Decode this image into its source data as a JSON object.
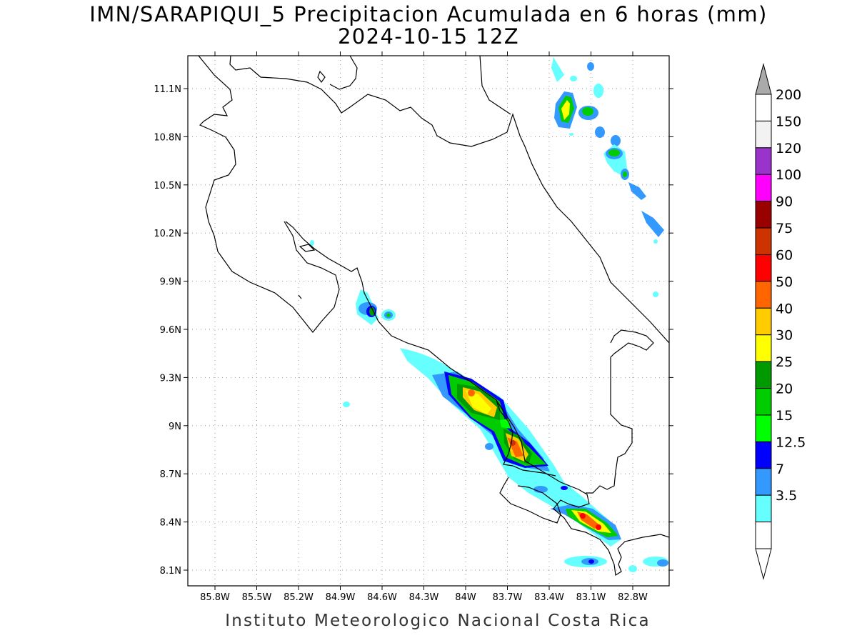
{
  "title": {
    "line1": "IMN/SARAPIQUI_5 Precipitacion Acumulada en 6 horas (mm)",
    "line2": "2024-10-15 12Z"
  },
  "footer": "Instituto Meteorologico Nacional Costa Rica",
  "map": {
    "lon_labels": [
      "85.8W",
      "85.5W",
      "85.2W",
      "84.9W",
      "84.6W",
      "84.3W",
      "84W",
      "83.7W",
      "83.4W",
      "83.1W",
      "82.8W"
    ],
    "lat_labels": [
      "11.1N",
      "10.8N",
      "10.5N",
      "10.2N",
      "9.9N",
      "9.6N",
      "9.3N",
      "9N",
      "8.7N",
      "8.4N",
      "8.1N"
    ],
    "grid": "dotted"
  },
  "colorbar": {
    "labels": [
      "200",
      "150",
      "120",
      "100",
      "90",
      "75",
      "60",
      "50",
      "40",
      "30",
      "25",
      "20",
      "15",
      "12.5",
      "7",
      "3.5"
    ],
    "colors": [
      "#ffffff",
      "#f2f2f2",
      "#9933cc",
      "#ff00ff",
      "#990000",
      "#cc3300",
      "#ff0000",
      "#ff6600",
      "#ffcc00",
      "#ffff00",
      "#009900",
      "#00cc00",
      "#00ff00",
      "#0000ff",
      "#3399ff",
      "#66ffff",
      "#ffffff"
    ],
    "above_arrow_color": "#aaaaaa",
    "below_arrow_color": "#ffffff"
  }
}
